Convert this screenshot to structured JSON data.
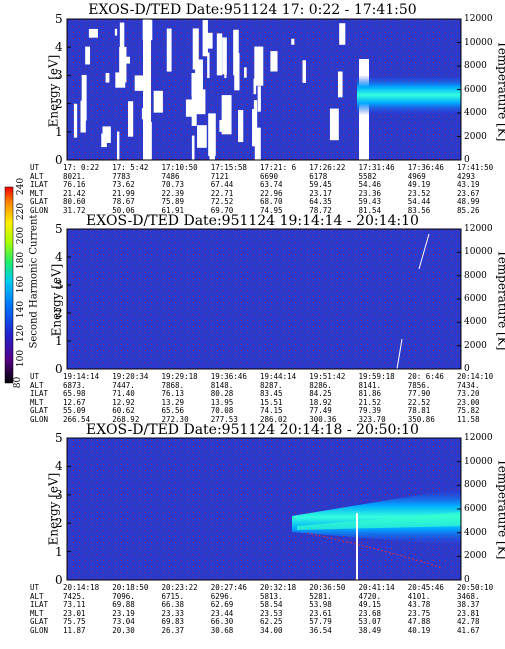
{
  "chart_data": [
    {
      "type": "heatmap",
      "title": "EXOS-D/TED   Date:951124   17: 0:22 - 17:41:50",
      "ylabel": "Energy [eV]",
      "y2label": "Temperature [K]",
      "ylim": [
        0,
        5
      ],
      "y2lim": [
        0,
        12000
      ],
      "yticks": [
        "0",
        "1",
        "2",
        "3",
        "4",
        "5"
      ],
      "y2ticks": [
        "0",
        "2000",
        "4000",
        "6000",
        "8000",
        "10000",
        "12000"
      ],
      "ephemeris": {
        "labels": [
          "UT",
          "ALT",
          "ILAT",
          "MLT",
          "GLAT",
          "GLON"
        ],
        "columns": [
          [
            "17: 0:22",
            "8021.",
            "76.16",
            "21.42",
            "80.60",
            "31.72"
          ],
          [
            "17: 5:42",
            "7783",
            "73.62",
            "21.99",
            "78.67",
            "50.06"
          ],
          [
            "17:10:50",
            "7486",
            "70.73",
            "22.39",
            "75.89",
            "61.91"
          ],
          [
            "17:15:58",
            "7121",
            "67.44",
            "22.71",
            "72.52",
            "69.70"
          ],
          [
            "17:21: 6",
            "6690",
            "63.74",
            "22.96",
            "68.70",
            "74.95"
          ],
          [
            "17:26:22",
            "6178",
            "59.45",
            "23.17",
            "64.35",
            "78.72"
          ],
          [
            "17:31:46",
            "5582",
            "54.46",
            "23.36",
            "59.43",
            "81.54"
          ],
          [
            "17:36:46",
            "4969",
            "49.19",
            "23.52",
            "54.44",
            "83.56"
          ],
          [
            "17:41:50",
            "4293",
            "43.19",
            "23.67",
            "48.99",
            "85.26"
          ]
        ]
      }
    },
    {
      "type": "heatmap",
      "title": "EXOS-D/TED   Date:951124   19:14:14 - 20:14:10",
      "ylabel": "Energy [eV]",
      "y2label": "Temperature [K]",
      "ylim": [
        0,
        5
      ],
      "y2lim": [
        0,
        12000
      ],
      "yticks": [
        "0",
        "1",
        "2",
        "3",
        "4",
        "5"
      ],
      "y2ticks": [
        "0",
        "2000",
        "4000",
        "6000",
        "8000",
        "10000",
        "12000"
      ],
      "ephemeris": {
        "labels": [
          "UT",
          "ALT",
          "ILAT",
          "MLT",
          "GLAT",
          "GLON"
        ],
        "columns": [
          [
            "19:14:14",
            "6873.",
            "65.98",
            "12.67",
            "55.09",
            "266.54"
          ],
          [
            "19:20:34",
            "7447.",
            "71.40",
            "12.92",
            "60.62",
            "268.92"
          ],
          [
            "19:29:18",
            "7868.",
            "76.13",
            "13.29",
            "65.56",
            "272.30"
          ],
          [
            "19:36:46",
            "8148.",
            "80.28",
            "13.95",
            "70.08",
            "277.53"
          ],
          [
            "19:44:14",
            "8287.",
            "83.45",
            "15.51",
            "74.15",
            "286.02"
          ],
          [
            "19:51:42",
            "8286.",
            "84.25",
            "18.92",
            "77.49",
            "300.36"
          ],
          [
            "19:59:18",
            "8141.",
            "81.86",
            "21.52",
            "79.39",
            "323.70"
          ],
          [
            "20: 6:46",
            "7856.",
            "77.90",
            "22.52",
            "78.81",
            "350.86"
          ],
          [
            "20:14:10",
            "7434.",
            "73.20",
            "23.00",
            "75.82",
            "11.58"
          ]
        ]
      },
      "colorbar": {
        "label": "Second Harmonic Current",
        "ticks": [
          "80",
          "100",
          "120",
          "140",
          "160",
          "180",
          "200",
          "220",
          "240"
        ]
      }
    },
    {
      "type": "heatmap",
      "title": "EXOS-D/TED   Date:951124   20:14:18 - 20:50:10",
      "ylabel": "Energy [eV]",
      "y2label": "Temperature [K]",
      "ylim": [
        0,
        5
      ],
      "y2lim": [
        0,
        12000
      ],
      "yticks": [
        "0",
        "1",
        "2",
        "3",
        "4",
        "5"
      ],
      "y2ticks": [
        "0",
        "2000",
        "4000",
        "6000",
        "8000",
        "10000",
        "12000"
      ],
      "ephemeris": {
        "labels": [
          "UT",
          "ALT",
          "ILAT",
          "MLT",
          "GLAT",
          "GLON"
        ],
        "columns": [
          [
            "20:14:18",
            "7425.",
            "73.11",
            "23.01",
            "75.75",
            "11.87"
          ],
          [
            "20:18:50",
            "7096.",
            "69.88",
            "23.19",
            "73.04",
            "20.30"
          ],
          [
            "20:23:22",
            "6715.",
            "66.38",
            "23.33",
            "69.83",
            "26.37"
          ],
          [
            "20:27:46",
            "6296.",
            "62.69",
            "23.44",
            "66.30",
            "30.68"
          ],
          [
            "20:32:18",
            "5813.",
            "58.54",
            "23.53",
            "62.25",
            "34.00"
          ],
          [
            "20:36:50",
            "5281.",
            "53.98",
            "23.61",
            "57.79",
            "36.54"
          ],
          [
            "20:41:14",
            "4720.",
            "49.15",
            "23.68",
            "53.07",
            "38.49"
          ],
          [
            "20:45:46",
            "4101.",
            "43.78",
            "23.75",
            "47.88",
            "40.19"
          ],
          [
            "20:50:10",
            "3468.",
            "38.37",
            "23.81",
            "42.78",
            "41.67"
          ]
        ]
      }
    }
  ],
  "colors": {
    "background": "#2233cc",
    "band": "#00ccff",
    "band_core": "#44ffcc",
    "tick_red": "#aa2222"
  }
}
